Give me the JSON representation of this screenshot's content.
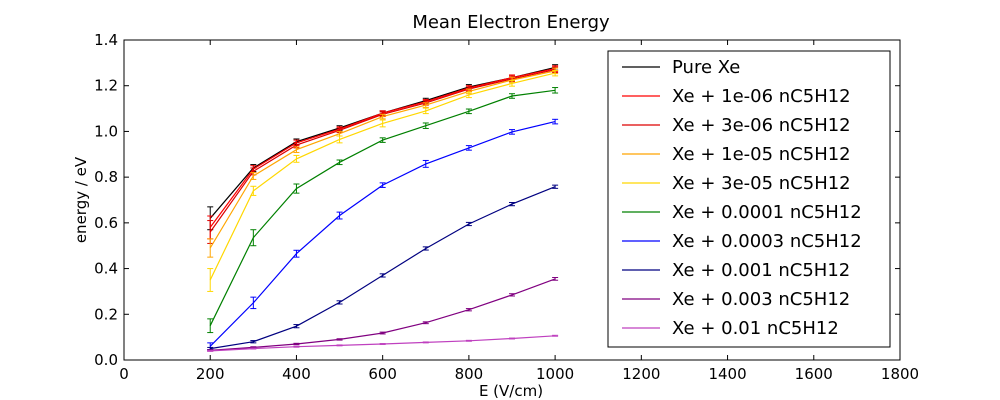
{
  "chart_data": {
    "type": "line",
    "title": "Mean Electron Energy",
    "xlabel": "E (V/cm)",
    "ylabel": "energy / eV",
    "xlim": [
      0,
      1800
    ],
    "ylim": [
      0.0,
      1.4
    ],
    "xticks": [
      "0",
      "200",
      "400",
      "600",
      "800",
      "1000",
      "1200",
      "1400",
      "1600",
      "1800"
    ],
    "yticks": [
      "0.0",
      "0.2",
      "0.4",
      "0.6",
      "0.8",
      "1.0",
      "1.2",
      "1.4"
    ],
    "grid": false,
    "legend_position": "top-right",
    "x": [
      200,
      300,
      400,
      500,
      600,
      700,
      800,
      900,
      1000
    ],
    "series": [
      {
        "name": "Pure Xe",
        "color": "#000000",
        "values": [
          0.62,
          0.84,
          0.955,
          1.015,
          1.08,
          1.135,
          1.195,
          1.235,
          1.28
        ],
        "errors": [
          0.05,
          0.015,
          0.012,
          0.01,
          0.01,
          0.01,
          0.01,
          0.012,
          0.012
        ]
      },
      {
        "name": "Xe + 1e-06 nC5H12",
        "color": "#ff0000",
        "values": [
          0.58,
          0.835,
          0.95,
          1.01,
          1.08,
          1.13,
          1.19,
          1.235,
          1.275
        ],
        "errors": [
          0.05,
          0.015,
          0.012,
          0.01,
          0.01,
          0.01,
          0.01,
          0.012,
          0.012
        ]
      },
      {
        "name": "Xe + 3e-06 nC5H12",
        "color": "#dd0000",
        "values": [
          0.56,
          0.825,
          0.94,
          1.005,
          1.075,
          1.125,
          1.185,
          1.23,
          1.27
        ],
        "errors": [
          0.05,
          0.015,
          0.012,
          0.01,
          0.01,
          0.01,
          0.01,
          0.012,
          0.012
        ]
      },
      {
        "name": "Xe + 1e-05 nC5H12",
        "color": "#ffa500",
        "values": [
          0.49,
          0.805,
          0.92,
          0.99,
          1.065,
          1.115,
          1.175,
          1.225,
          1.265
        ],
        "errors": [
          0.04,
          0.015,
          0.012,
          0.01,
          0.01,
          0.01,
          0.01,
          0.012,
          0.012
        ]
      },
      {
        "name": "Xe + 3e-05 nC5H12",
        "color": "#ffd700",
        "values": [
          0.35,
          0.74,
          0.88,
          0.965,
          1.035,
          1.09,
          1.16,
          1.21,
          1.255
        ],
        "errors": [
          0.05,
          0.02,
          0.015,
          0.015,
          0.015,
          0.012,
          0.012,
          0.012,
          0.012
        ]
      },
      {
        "name": "Xe + 0.0001 nC5H12",
        "color": "#008000",
        "values": [
          0.15,
          0.535,
          0.75,
          0.865,
          0.962,
          1.025,
          1.088,
          1.155,
          1.18
        ],
        "errors": [
          0.03,
          0.035,
          0.02,
          0.01,
          0.01,
          0.012,
          0.01,
          0.01,
          0.012
        ]
      },
      {
        "name": "Xe + 0.0003 nC5H12",
        "color": "#0000ff",
        "values": [
          0.06,
          0.25,
          0.465,
          0.632,
          0.765,
          0.858,
          0.928,
          0.998,
          1.043
        ],
        "errors": [
          0.015,
          0.025,
          0.015,
          0.015,
          0.01,
          0.015,
          0.01,
          0.01,
          0.01
        ]
      },
      {
        "name": "Xe + 0.001 nC5H12",
        "color": "#000080",
        "values": [
          0.05,
          0.08,
          0.148,
          0.252,
          0.37,
          0.488,
          0.595,
          0.682,
          0.758
        ],
        "errors": [
          0.005,
          0.005,
          0.007,
          0.007,
          0.007,
          0.007,
          0.007,
          0.007,
          0.007
        ]
      },
      {
        "name": "Xe + 0.003 nC5H12",
        "color": "#800080",
        "values": [
          0.042,
          0.055,
          0.07,
          0.09,
          0.118,
          0.163,
          0.22,
          0.285,
          0.355
        ],
        "errors": [
          0.003,
          0.003,
          0.003,
          0.003,
          0.004,
          0.004,
          0.005,
          0.005,
          0.006
        ]
      },
      {
        "name": "Xe + 0.01 nC5H12",
        "color": "#bf40bf",
        "values": [
          0.04,
          0.05,
          0.058,
          0.064,
          0.07,
          0.077,
          0.084,
          0.094,
          0.106
        ],
        "errors": [
          0.002,
          0.002,
          0.002,
          0.002,
          0.002,
          0.002,
          0.002,
          0.002,
          0.002
        ]
      }
    ]
  }
}
